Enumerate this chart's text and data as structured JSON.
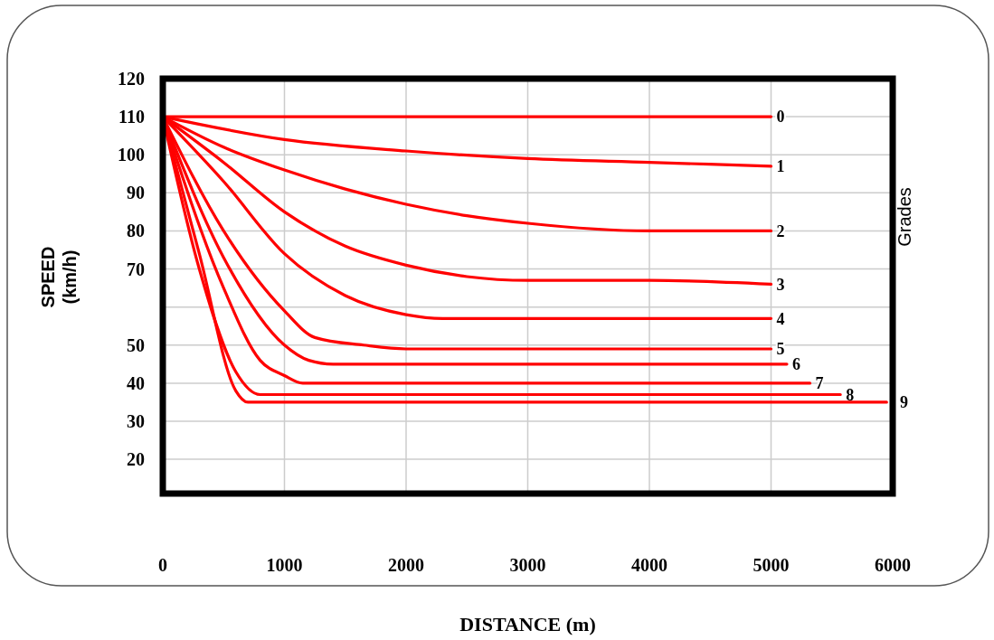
{
  "chart_data": {
    "type": "line",
    "xlabel": "DISTANCE (m)",
    "ylabel": "SPEED (km/h)",
    "annotations": [
      "Grades"
    ],
    "xlim": [
      0,
      6000
    ],
    "xticks": [
      0,
      1000,
      2000,
      3000,
      4000,
      5000,
      6000
    ],
    "ylim": [
      11,
      120
    ],
    "yticks": [
      20,
      30,
      40,
      50,
      {
        "value": 60,
        "label": null
      },
      70,
      80,
      90,
      100,
      110,
      120
    ],
    "grid": true,
    "marker": "none",
    "line_style": "solid",
    "series": [
      {
        "name": "0",
        "color": "#ff0000",
        "x": [
          0,
          1000,
          2000,
          3000,
          4000,
          5000
        ],
        "values": [
          110,
          110,
          110,
          110,
          110,
          110
        ]
      },
      {
        "name": "1",
        "color": "#ff0000",
        "x": [
          0,
          1000,
          2000,
          3000,
          4000,
          5000
        ],
        "values": [
          110,
          104,
          101,
          99,
          98,
          97
        ]
      },
      {
        "name": "2",
        "color": "#ff0000",
        "x": [
          0,
          500,
          1000,
          1500,
          2000,
          2500,
          3000,
          4000,
          5000
        ],
        "values": [
          110,
          102,
          96,
          91,
          87,
          84,
          82,
          80,
          80
        ]
      },
      {
        "name": "3",
        "color": "#ff0000",
        "x": [
          0,
          500,
          1000,
          1500,
          2000,
          2500,
          3000,
          4000,
          5000
        ],
        "values": [
          110,
          98,
          85,
          76,
          71,
          68,
          67,
          67,
          66
        ]
      },
      {
        "name": "4",
        "color": "#ff0000",
        "x": [
          0,
          500,
          1000,
          1500,
          2000,
          2300,
          3000,
          5000
        ],
        "values": [
          110,
          93,
          74,
          63,
          58,
          57,
          57,
          57
        ]
      },
      {
        "name": "5",
        "color": "#ff0000",
        "x": [
          0,
          500,
          1000,
          1250,
          1650,
          2000,
          5000
        ],
        "values": [
          110,
          80,
          59,
          52,
          50,
          49,
          49
        ]
      },
      {
        "name": "6",
        "color": "#ff0000",
        "x": [
          0,
          500,
          1000,
          1200,
          1400,
          5130
        ],
        "values": [
          110,
          73,
          50,
          46,
          45,
          45
        ]
      },
      {
        "name": "7",
        "color": "#ff0000",
        "x": [
          0,
          500,
          800,
          1000,
          1150,
          5320
        ],
        "values": [
          110,
          65,
          46,
          42,
          40,
          40
        ]
      },
      {
        "name": "8",
        "color": "#ff0000",
        "x": [
          0,
          300,
          600,
          800,
          5570
        ],
        "values": [
          110,
          70,
          43,
          37,
          37
        ]
      },
      {
        "name": "9",
        "color": "#ff0000",
        "x": [
          0,
          300,
          600,
          700,
          800,
          5950
        ],
        "values": [
          110,
          74,
          38,
          35,
          35,
          35
        ]
      }
    ]
  }
}
